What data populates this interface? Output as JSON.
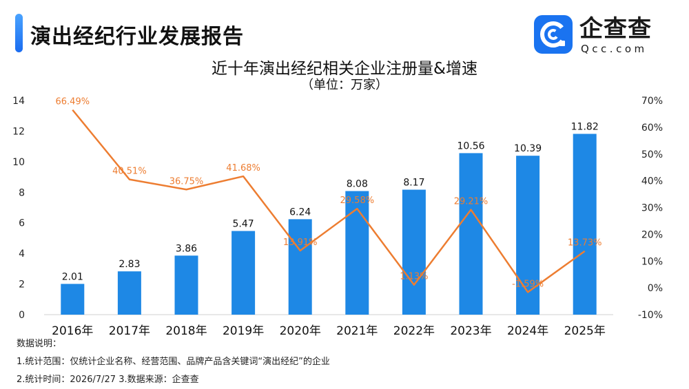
{
  "header": {
    "title": "演出经纪行业发展报告",
    "logo_text": "企查查",
    "logo_domain": "Qcc.com"
  },
  "chart_data": {
    "type": "bar",
    "title": "近十年演出经纪相关企业注册量&增速",
    "subtitle": "（单位：万家）",
    "categories": [
      "2016年",
      "2017年",
      "2018年",
      "2019年",
      "2020年",
      "2021年",
      "2022年",
      "2023年",
      "2024年",
      "2025年"
    ],
    "series": [
      {
        "type": "bar",
        "values": [
          2.01,
          2.83,
          3.86,
          5.47,
          6.24,
          8.08,
          8.17,
          10.56,
          10.39,
          11.82
        ],
        "labels": [
          "2.01",
          "2.83",
          "3.86",
          "5.47",
          "6.24",
          "8.08",
          "8.17",
          "10.56",
          "10.39",
          "11.82"
        ],
        "color": "#1e88e5",
        "axis": "left"
      },
      {
        "type": "line",
        "values": [
          66.49,
          40.51,
          36.75,
          41.68,
          13.91,
          29.58,
          1.13,
          29.21,
          -1.59,
          13.73
        ],
        "labels": [
          "66.49%",
          "40.51%",
          "36.75%",
          "41.68%",
          "13.91%",
          "29.58%",
          "1.13%",
          "29.21%",
          "-1.59%",
          "13.73%"
        ],
        "color": "#ed7d31",
        "axis": "right"
      }
    ],
    "y_left": {
      "ylim": [
        0,
        14
      ],
      "ticks": [
        "0",
        "2",
        "4",
        "6",
        "8",
        "10",
        "12",
        "14"
      ]
    },
    "y_right": {
      "ylim": [
        -10,
        70
      ],
      "ticks": [
        "-10%",
        "0%",
        "10%",
        "20%",
        "30%",
        "40%",
        "50%",
        "60%",
        "70%"
      ]
    },
    "grid": false,
    "legend": "none"
  },
  "notes": {
    "heading": "数据说明：",
    "line1": "1.统计范围：仅统计企业名称、经营范围、品牌产品含关键词“演出经纪”的企业",
    "line2": "2.统计时间：2026/7/27  3.数据来源：企查查"
  }
}
